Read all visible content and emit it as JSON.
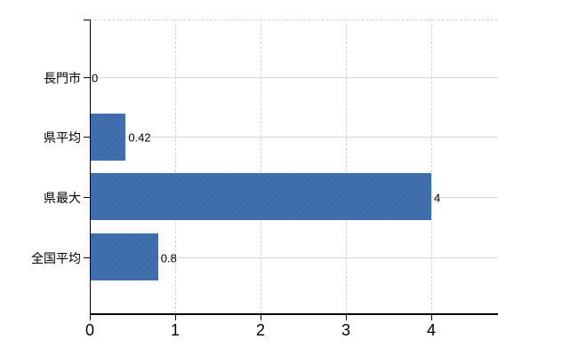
{
  "chart_data": {
    "type": "bar",
    "orientation": "horizontal",
    "title": "",
    "xlabel": "",
    "ylabel": "",
    "categories": [
      "長門市",
      "県平均",
      "県最大",
      "全国平均"
    ],
    "values": [
      0,
      0.42,
      4,
      0.8
    ],
    "value_labels": [
      "0",
      "0.42",
      "4",
      "0.8"
    ],
    "x_ticks": [
      0,
      1,
      2,
      3,
      4
    ],
    "x_tick_labels": [
      "0",
      "1",
      "2",
      "3",
      "4"
    ],
    "xlim": [
      0,
      4.78
    ],
    "grid": true,
    "gridline_style_vertical": "dashed",
    "gridline_style_horizontal": "solid",
    "legend": false,
    "colors": {
      "bar": "#3f6fae",
      "gridline": "#d4d7cd",
      "axis": "#000000",
      "text": "#000000",
      "background": "#ffffff"
    }
  }
}
